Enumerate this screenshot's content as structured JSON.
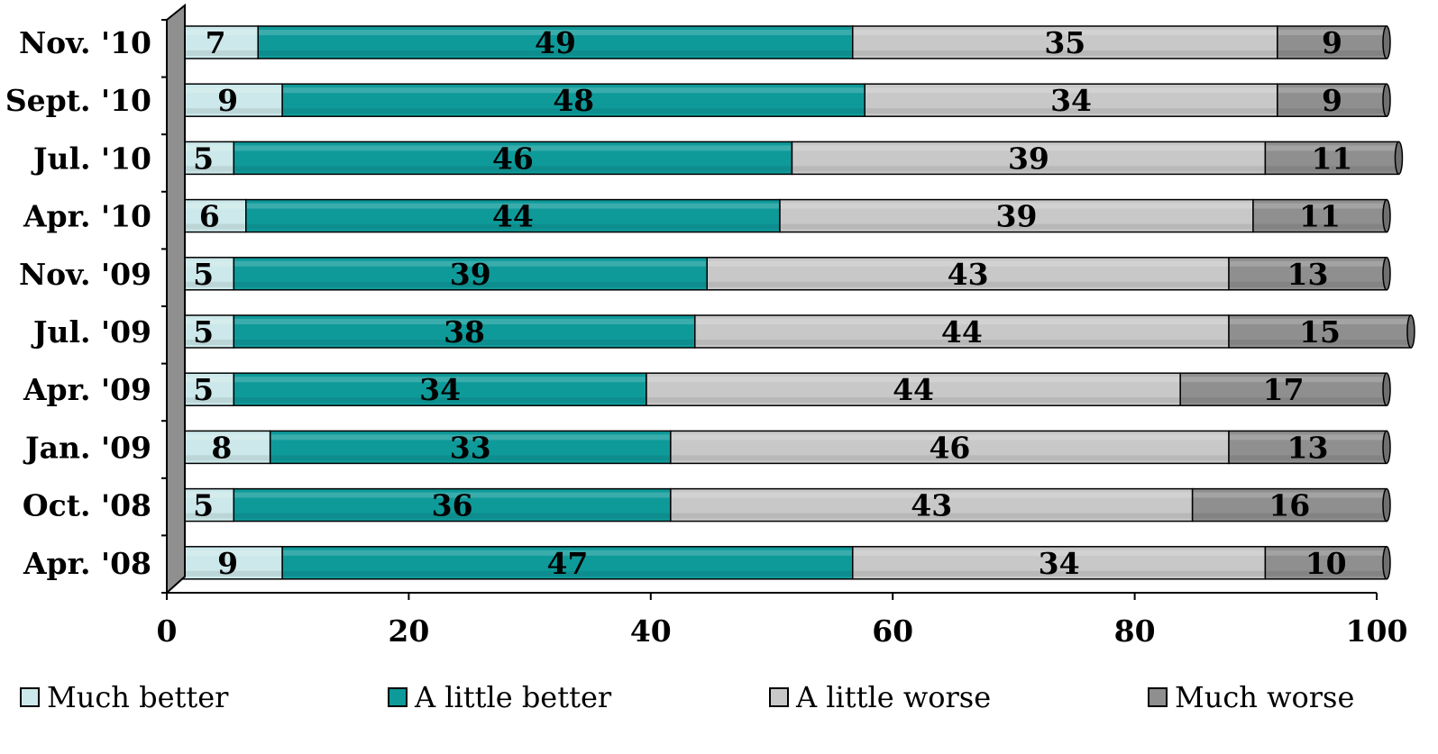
{
  "chart_data": {
    "type": "bar",
    "orientation": "horizontal",
    "stacked": true,
    "categories": [
      "Nov. '10",
      "Sept. '10",
      "Jul. '10",
      "Apr. '10",
      "Nov. '09",
      "Jul. '09",
      "Apr. '09",
      "Jan. '09",
      "Oct. '08",
      "Apr. '08"
    ],
    "series": [
      {
        "name": "Much better",
        "color": "#cce8ea",
        "values": [
          7,
          9,
          5,
          6,
          5,
          5,
          5,
          8,
          5,
          9
        ]
      },
      {
        "name": "A little better",
        "color": "#0f9a9a",
        "values": [
          49,
          48,
          46,
          44,
          39,
          38,
          34,
          33,
          36,
          47
        ]
      },
      {
        "name": "A little worse",
        "color": "#c8c8c8",
        "values": [
          35,
          34,
          39,
          39,
          43,
          44,
          44,
          46,
          43,
          34
        ]
      },
      {
        "name": "Much worse",
        "color": "#8f8f8f",
        "values": [
          9,
          9,
          11,
          11,
          13,
          15,
          17,
          13,
          16,
          10
        ]
      }
    ],
    "x_ticks": [
      "0",
      "20",
      "40",
      "60",
      "80",
      "100"
    ],
    "xlim": [
      0,
      100
    ],
    "grid": false,
    "legend_position": "bottom",
    "title": "",
    "xlabel": "",
    "ylabel": ""
  }
}
